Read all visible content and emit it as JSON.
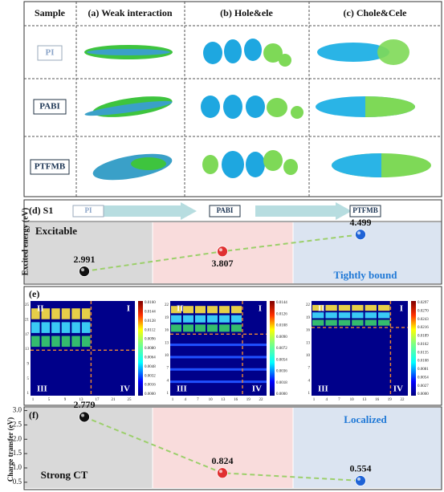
{
  "table": {
    "header": [
      "Sample",
      "(a) Weak interaction",
      "(b) Hole&ele",
      "(c) Chole&Cele"
    ],
    "rows": [
      "PI",
      "PABI",
      "PTFMB"
    ]
  },
  "panel_e": {
    "label": "(e)",
    "maps": [
      {
        "quadrants": [
          "II",
          "I",
          "III",
          "IV"
        ],
        "xticks": [
          "1",
          "5",
          "9",
          "13",
          "17",
          "21",
          "25"
        ],
        "yticks": [
          "1",
          "5",
          "9",
          "13",
          "17",
          "21",
          "25"
        ],
        "colorbar": [
          "0.0160",
          "0.0144",
          "0.0128",
          "0.0112",
          "0.0096",
          "0.0080",
          "0.0064",
          "0.0048",
          "0.0032",
          "0.0016",
          "0.0000"
        ]
      },
      {
        "quadrants": [
          "II",
          "I",
          "III",
          "IV"
        ],
        "xticks": [
          "1",
          "4",
          "7",
          "10",
          "13",
          "16",
          "19",
          "22"
        ],
        "yticks": [
          "1",
          "4",
          "7",
          "10",
          "13",
          "16",
          "19",
          "22"
        ],
        "colorbar": [
          "0.0144",
          "0.0126",
          "0.0108",
          "0.0090",
          "0.0072",
          "0.0054",
          "0.0036",
          "0.0018",
          "0.0000"
        ]
      },
      {
        "quadrants": [
          "II",
          "I",
          "III",
          "IV"
        ],
        "xticks": [
          "1",
          "4",
          "7",
          "10",
          "13",
          "16",
          "19",
          "22"
        ],
        "yticks": [
          "1",
          "4",
          "7",
          "10",
          "13",
          "16",
          "19",
          "22"
        ],
        "colorbar": [
          "0.0297",
          "0.0270",
          "0.0243",
          "0.0216",
          "0.0189",
          "0.0162",
          "0.0135",
          "0.0108",
          "0.0081",
          "0.0054",
          "0.0027",
          "0.0000"
        ]
      }
    ]
  },
  "chart_data": [
    {
      "type": "line",
      "label": "(d) S1",
      "categories": [
        "PI",
        "PABI",
        "PTFMB"
      ],
      "y_label": "Excited energy (eV)",
      "values": [
        2.991,
        3.807,
        4.499
      ],
      "colors": [
        "#111111",
        "#e03030",
        "#1f63d6"
      ],
      "annotations": [
        "Excitable",
        "Tightly bound"
      ],
      "ylim": [
        2.5,
        5.0
      ]
    },
    {
      "type": "line",
      "label": "(f)",
      "categories": [
        null,
        null,
        null
      ],
      "y_label": "Charge transfer (eV)",
      "values": [
        2.779,
        0.824,
        0.554
      ],
      "colors": [
        "#111111",
        "#e03030",
        "#1f63d6"
      ],
      "annotations": [
        "Strong CT",
        "Localized"
      ],
      "ylim": [
        0.3,
        3.1
      ],
      "yticks": [
        {
          "value": 3,
          "label": "3.0"
        },
        2.5,
        {
          "value": 2,
          "label": "2.0"
        },
        1.5,
        {
          "value": 1,
          "label": "1.0"
        },
        0.5
      ]
    }
  ]
}
